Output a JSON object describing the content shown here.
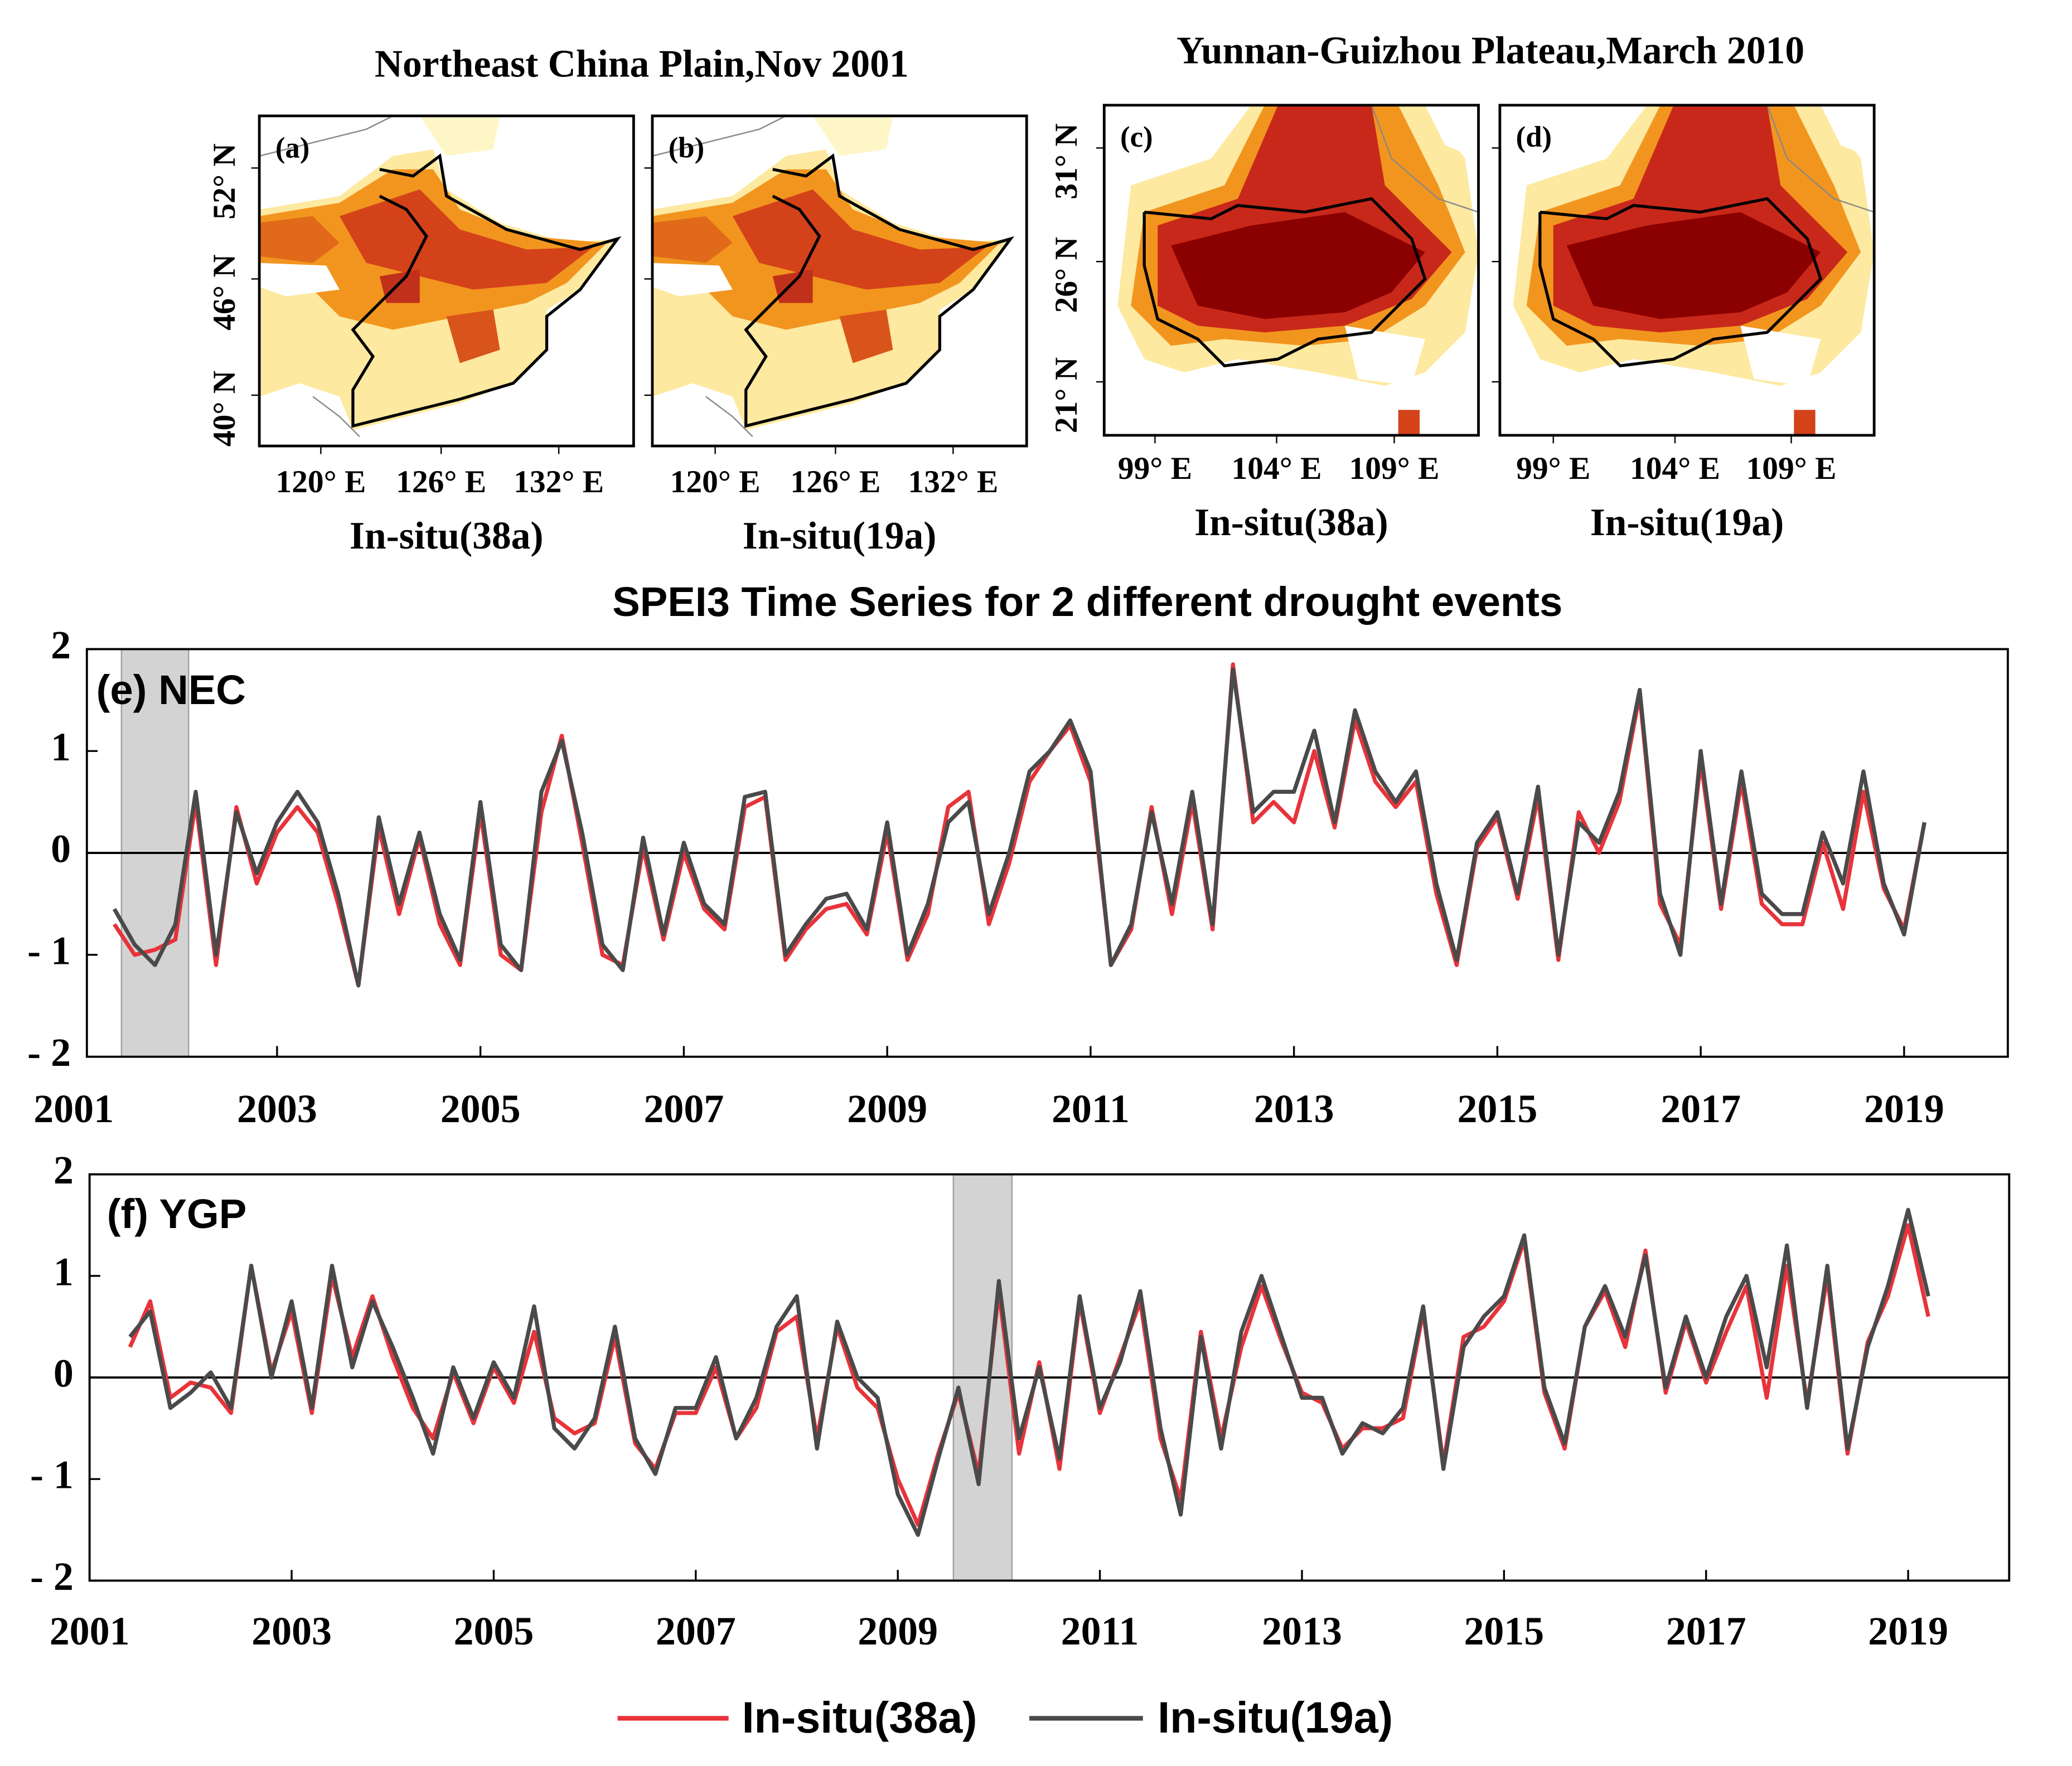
{
  "maps": [
    {
      "title": "Northeast China Plain,Nov 2001",
      "lat_ticks": [
        "52° N",
        "46° N",
        "40° N"
      ],
      "panels": [
        {
          "label": "(a)",
          "lon_ticks": [
            "120° E",
            "126° E",
            "132° E"
          ],
          "caption": "In-situ(38a)"
        },
        {
          "label": "(b)",
          "lon_ticks": [
            "120° E",
            "126° E",
            "132° E"
          ],
          "caption": "In-situ(19a)"
        }
      ]
    },
    {
      "title": "Yunnan-Guizhou Plateau,March 2010",
      "lat_ticks": [
        "31° N",
        "26° N",
        "21° N"
      ],
      "panels": [
        {
          "label": "(c)",
          "lon_ticks": [
            "99° E",
            "104° E",
            "109° E"
          ],
          "caption": "In-situ(38a)"
        },
        {
          "label": "(d)",
          "lon_ticks": [
            "99° E",
            "104° E",
            "109° E"
          ],
          "caption": "In-situ(19a)"
        }
      ]
    }
  ],
  "chart_data": [
    {
      "type": "line",
      "title": "SPEI3 Time Series for 2 different drought events",
      "annotation": "(e) NEC",
      "highlight": [
        2001.47,
        2002.13
      ],
      "xlim": [
        2001.13,
        2020.02
      ],
      "xticks": [
        2001,
        2003,
        2005,
        2007,
        2009,
        2011,
        2013,
        2015,
        2017,
        2019
      ],
      "ylim": [
        -2,
        2
      ],
      "yticks": [
        {
          "value": -2,
          "label": "- 2"
        },
        {
          "value": -1,
          "label": "- 1"
        },
        0,
        1,
        2
      ],
      "x": [
        2001.4,
        2001.6,
        2001.8,
        2002.0,
        2002.2,
        2002.4,
        2002.6,
        2002.8,
        2003.0,
        2003.2,
        2003.4,
        2003.6,
        2003.8,
        2004.0,
        2004.2,
        2004.4,
        2004.6,
        2004.8,
        2005.0,
        2005.2,
        2005.4,
        2005.6,
        2005.8,
        2006.0,
        2006.2,
        2006.4,
        2006.6,
        2006.8,
        2007.0,
        2007.2,
        2007.4,
        2007.6,
        2007.8,
        2008.0,
        2008.2,
        2008.4,
        2008.6,
        2008.8,
        2009.0,
        2009.2,
        2009.4,
        2009.6,
        2009.8,
        2010.0,
        2010.2,
        2010.4,
        2010.6,
        2010.8,
        2011.0,
        2011.2,
        2011.4,
        2011.6,
        2011.8,
        2012.0,
        2012.2,
        2012.4,
        2012.6,
        2012.8,
        2013.0,
        2013.2,
        2013.4,
        2013.6,
        2013.8,
        2014.0,
        2014.2,
        2014.4,
        2014.6,
        2014.8,
        2015.0,
        2015.2,
        2015.4,
        2015.6,
        2015.8,
        2016.0,
        2016.2,
        2016.4,
        2016.6,
        2016.8,
        2017.0,
        2017.2,
        2017.4,
        2017.6,
        2017.8,
        2018.0,
        2018.2,
        2018.4,
        2018.6,
        2018.8,
        2019.0,
        2019.2
      ],
      "series": [
        {
          "name": "In-situ(38a)",
          "color": "#e8333a",
          "values": [
            -0.7,
            -1.0,
            -0.95,
            -0.85,
            0.5,
            -1.1,
            0.45,
            -0.3,
            0.2,
            0.45,
            0.2,
            -0.5,
            -1.3,
            0.25,
            -0.6,
            0.15,
            -0.7,
            -1.1,
            0.4,
            -1.0,
            -1.15,
            0.4,
            1.15,
            0.1,
            -1.0,
            -1.1,
            0.05,
            -0.85,
            0.0,
            -0.55,
            -0.75,
            0.45,
            0.55,
            -1.05,
            -0.75,
            -0.55,
            -0.5,
            -0.8,
            0.2,
            -1.05,
            -0.6,
            0.45,
            0.6,
            -0.7,
            -0.1,
            0.7,
            1.0,
            1.25,
            0.7,
            -1.1,
            -0.75,
            0.45,
            -0.6,
            0.5,
            -0.75,
            1.85,
            0.3,
            0.5,
            0.3,
            1.0,
            0.25,
            1.3,
            0.7,
            0.45,
            0.7,
            -0.4,
            -1.1,
            0.05,
            0.35,
            -0.45,
            0.55,
            -1.05,
            0.4,
            0.0,
            0.5,
            1.55,
            -0.5,
            -0.9,
            0.9,
            -0.55,
            0.7,
            -0.5,
            -0.7,
            -0.7,
            0.1,
            -0.55,
            0.6,
            -0.35,
            -0.75,
            0.3
          ]
        },
        {
          "name": "In-situ(19a)",
          "color": "#4a4a4a",
          "values": [
            -0.55,
            -0.9,
            -1.1,
            -0.7,
            0.6,
            -1.0,
            0.4,
            -0.2,
            0.3,
            0.6,
            0.3,
            -0.4,
            -1.3,
            0.35,
            -0.5,
            0.2,
            -0.6,
            -1.05,
            0.5,
            -0.9,
            -1.15,
            0.6,
            1.1,
            0.2,
            -0.9,
            -1.15,
            0.15,
            -0.8,
            0.1,
            -0.5,
            -0.7,
            0.55,
            0.6,
            -1.0,
            -0.7,
            -0.45,
            -0.4,
            -0.75,
            0.3,
            -1.0,
            -0.5,
            0.3,
            0.5,
            -0.6,
            0.0,
            0.8,
            1.0,
            1.3,
            0.8,
            -1.1,
            -0.7,
            0.4,
            -0.5,
            0.6,
            -0.7,
            1.8,
            0.4,
            0.6,
            0.6,
            1.2,
            0.3,
            1.4,
            0.8,
            0.5,
            0.8,
            -0.3,
            -1.05,
            0.1,
            0.4,
            -0.4,
            0.65,
            -1.0,
            0.3,
            0.1,
            0.6,
            1.6,
            -0.4,
            -1.0,
            1.0,
            -0.5,
            0.8,
            -0.4,
            -0.6,
            -0.6,
            0.2,
            -0.3,
            0.8,
            -0.3,
            -0.8,
            0.3
          ]
        }
      ]
    },
    {
      "type": "line",
      "annotation": "(f) YGP",
      "highlight": [
        2009.55,
        2010.13
      ],
      "xlim": [
        2001.0,
        2020.0
      ],
      "xticks": [
        2001,
        2003,
        2005,
        2007,
        2009,
        2011,
        2013,
        2015,
        2017,
        2019
      ],
      "ylim": [
        -2,
        2
      ],
      "yticks": [
        {
          "value": -2,
          "label": "- 2"
        },
        {
          "value": -1,
          "label": "- 1"
        },
        0,
        1,
        2
      ],
      "x": [
        2001.4,
        2001.6,
        2001.8,
        2002.0,
        2002.2,
        2002.4,
        2002.6,
        2002.8,
        2003.0,
        2003.2,
        2003.4,
        2003.6,
        2003.8,
        2004.0,
        2004.2,
        2004.4,
        2004.6,
        2004.8,
        2005.0,
        2005.2,
        2005.4,
        2005.6,
        2005.8,
        2006.0,
        2006.2,
        2006.4,
        2006.6,
        2006.8,
        2007.0,
        2007.2,
        2007.4,
        2007.6,
        2007.8,
        2008.0,
        2008.2,
        2008.4,
        2008.6,
        2008.8,
        2009.0,
        2009.2,
        2009.4,
        2009.6,
        2009.8,
        2010.0,
        2010.2,
        2010.4,
        2010.6,
        2010.8,
        2011.0,
        2011.2,
        2011.4,
        2011.6,
        2011.8,
        2012.0,
        2012.2,
        2012.4,
        2012.6,
        2012.8,
        2013.0,
        2013.2,
        2013.4,
        2013.6,
        2013.8,
        2014.0,
        2014.2,
        2014.4,
        2014.6,
        2014.8,
        2015.0,
        2015.2,
        2015.4,
        2015.6,
        2015.8,
        2016.0,
        2016.2,
        2016.4,
        2016.6,
        2016.8,
        2017.0,
        2017.2,
        2017.4,
        2017.6,
        2017.8,
        2018.0,
        2018.2,
        2018.4,
        2018.6,
        2018.8,
        2019.0,
        2019.2
      ],
      "series": [
        {
          "name": "In-situ(38a)",
          "color": "#e8333a",
          "values": [
            0.3,
            0.75,
            -0.2,
            -0.05,
            -0.1,
            -0.35,
            1.1,
            0.05,
            0.65,
            -0.35,
            1.0,
            0.2,
            0.8,
            0.2,
            -0.3,
            -0.6,
            0.05,
            -0.45,
            0.1,
            -0.25,
            0.45,
            -0.4,
            -0.55,
            -0.45,
            0.4,
            -0.65,
            -0.9,
            -0.35,
            -0.35,
            0.1,
            -0.6,
            -0.3,
            0.45,
            0.6,
            -0.6,
            0.5,
            -0.1,
            -0.3,
            -1.0,
            -1.45,
            -0.75,
            -0.15,
            -0.95,
            0.85,
            -0.75,
            0.15,
            -0.9,
            0.75,
            -0.35,
            0.2,
            0.75,
            -0.6,
            -1.2,
            0.45,
            -0.6,
            0.3,
            0.9,
            0.35,
            -0.15,
            -0.25,
            -0.7,
            -0.5,
            -0.5,
            -0.4,
            0.65,
            -0.85,
            0.4,
            0.5,
            0.75,
            1.35,
            -0.15,
            -0.7,
            0.5,
            0.85,
            0.3,
            1.25,
            -0.15,
            0.55,
            -0.05,
            0.45,
            0.9,
            -0.2,
            1.1,
            -0.25,
            1.0,
            -0.75,
            0.35,
            0.8,
            1.5,
            0.6
          ]
        },
        {
          "name": "In-situ(19a)",
          "color": "#4a4a4a",
          "values": [
            0.4,
            0.65,
            -0.3,
            -0.15,
            0.05,
            -0.3,
            1.1,
            0.0,
            0.75,
            -0.3,
            1.1,
            0.1,
            0.75,
            0.3,
            -0.2,
            -0.75,
            0.1,
            -0.4,
            0.15,
            -0.2,
            0.7,
            -0.5,
            -0.7,
            -0.4,
            0.5,
            -0.6,
            -0.95,
            -0.3,
            -0.3,
            0.2,
            -0.6,
            -0.2,
            0.5,
            0.8,
            -0.7,
            0.55,
            0.0,
            -0.2,
            -1.15,
            -1.55,
            -0.8,
            -0.1,
            -1.05,
            0.95,
            -0.6,
            0.1,
            -0.8,
            0.8,
            -0.3,
            0.15,
            0.85,
            -0.5,
            -1.35,
            0.4,
            -0.7,
            0.45,
            1.0,
            0.4,
            -0.2,
            -0.2,
            -0.75,
            -0.45,
            -0.55,
            -0.3,
            0.7,
            -0.9,
            0.3,
            0.6,
            0.8,
            1.4,
            -0.1,
            -0.65,
            0.5,
            0.9,
            0.4,
            1.2,
            -0.1,
            0.6,
            0.0,
            0.6,
            1.0,
            0.1,
            1.3,
            -0.3,
            1.1,
            -0.7,
            0.3,
            0.9,
            1.65,
            0.8
          ]
        }
      ]
    }
  ]
}
